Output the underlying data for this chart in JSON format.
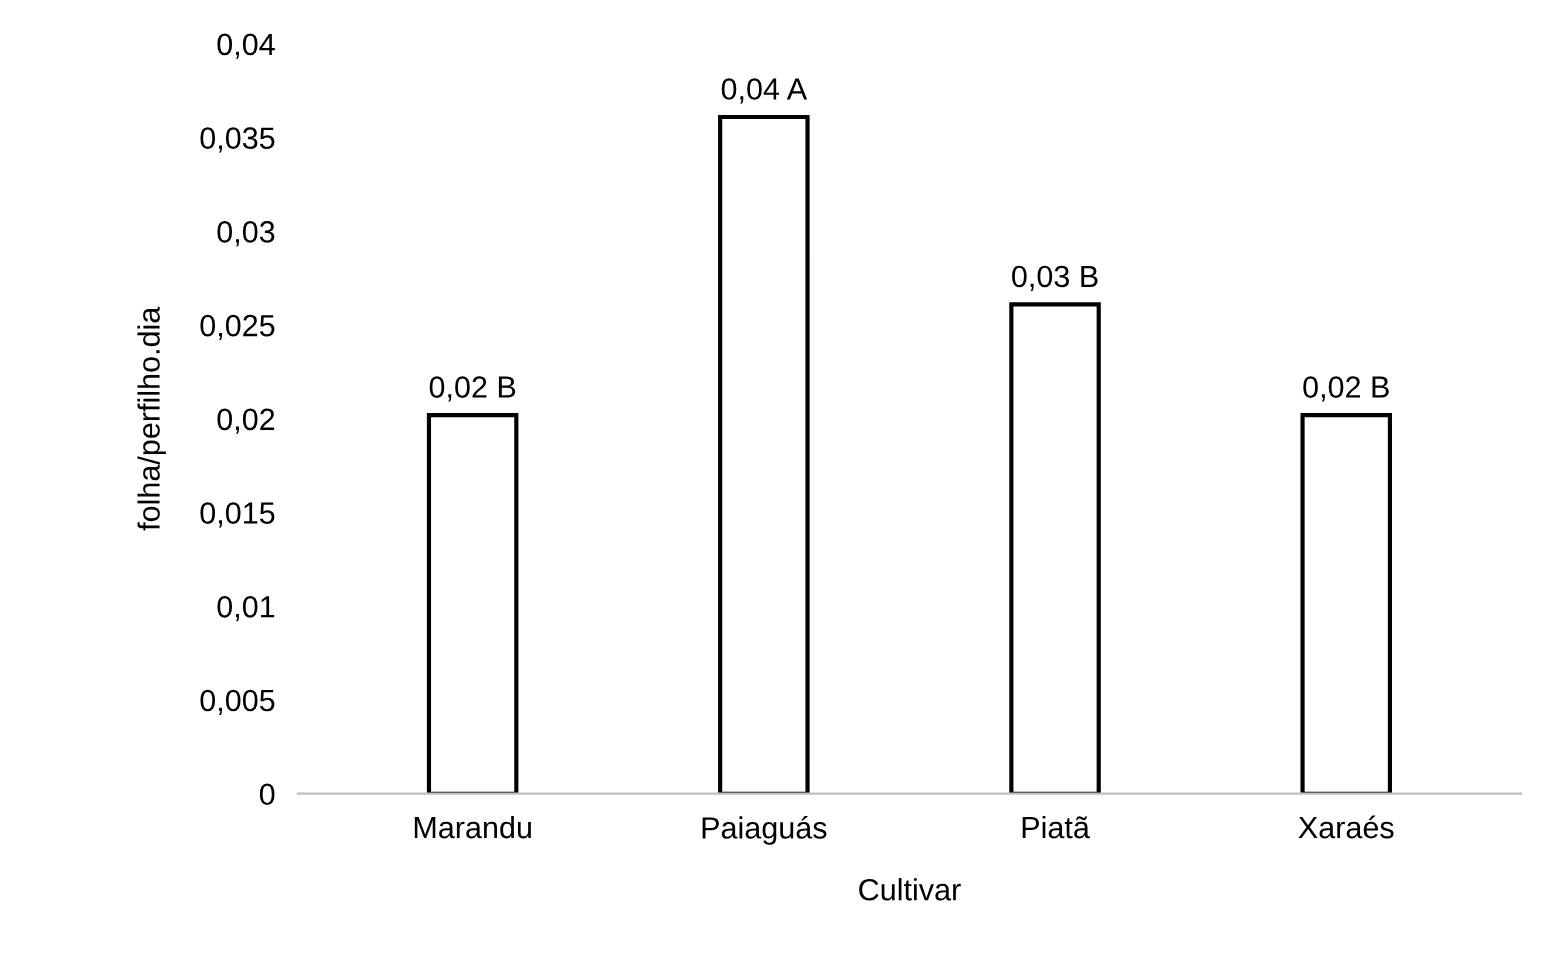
{
  "chart_data": {
    "type": "bar",
    "xlabel": "Cultivar",
    "ylabel": "folha/perfilho.dia",
    "categories": [
      "Marandu",
      "Paiaguás",
      "Piatã",
      "Xaraés"
    ],
    "values": [
      0.0202,
      0.0361,
      0.0261,
      0.0202
    ],
    "value_labels": [
      "0,02 B",
      "0,04 A",
      "0,03 B",
      "0,02 B"
    ],
    "color": "#ffffff",
    "ylim": [
      0,
      0.04
    ],
    "yticks": [
      {
        "value": 0,
        "label": "0"
      },
      {
        "value": 0.005,
        "label": "0,005"
      },
      {
        "value": 0.01,
        "label": "0,01"
      },
      {
        "value": 0.015,
        "label": "0,015"
      },
      {
        "value": 0.02,
        "label": "0,02"
      },
      {
        "value": 0.025,
        "label": "0,025"
      },
      {
        "value": 0.03,
        "label": "0,03"
      },
      {
        "value": 0.035,
        "label": "0,035"
      },
      {
        "value": 0.04,
        "label": "0,04"
      }
    ],
    "grid": false,
    "legend": false
  }
}
